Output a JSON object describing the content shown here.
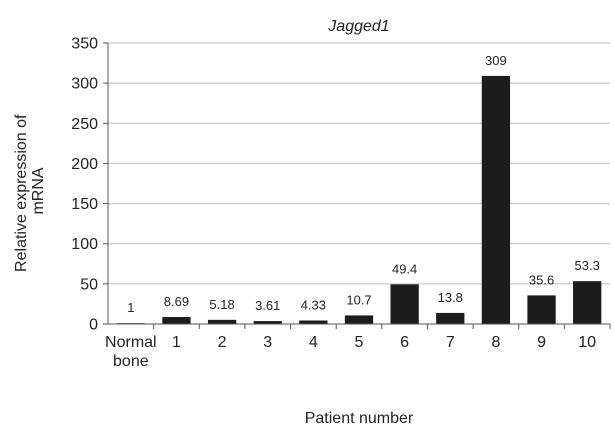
{
  "chart_data": {
    "type": "bar",
    "title": "Jagged1",
    "xlabel": "Patient number",
    "ylabel": [
      "Relative expression of",
      "mRNA"
    ],
    "ylim": [
      0,
      350
    ],
    "yticks": [
      0,
      50,
      100,
      150,
      200,
      250,
      300,
      350
    ],
    "grid": true,
    "categories": [
      [
        "Normal",
        "bone"
      ],
      [
        "1"
      ],
      [
        "2"
      ],
      [
        "3"
      ],
      [
        "4"
      ],
      [
        "5"
      ],
      [
        "6"
      ],
      [
        "7"
      ],
      [
        "8"
      ],
      [
        "9"
      ],
      [
        "10"
      ]
    ],
    "values": [
      1,
      8.69,
      5.18,
      3.61,
      4.33,
      10.7,
      49.4,
      13.8,
      309,
      35.6,
      53.3
    ],
    "value_labels": [
      "1",
      "8.69",
      "5.18",
      "3.61",
      "4.33",
      "10.7",
      "49.4",
      "13.8",
      "309",
      "35.6",
      "53.3"
    ],
    "bar_color": "#1c1c1c",
    "grid_color": "#bdbdbd",
    "axis_color": "#555555"
  }
}
